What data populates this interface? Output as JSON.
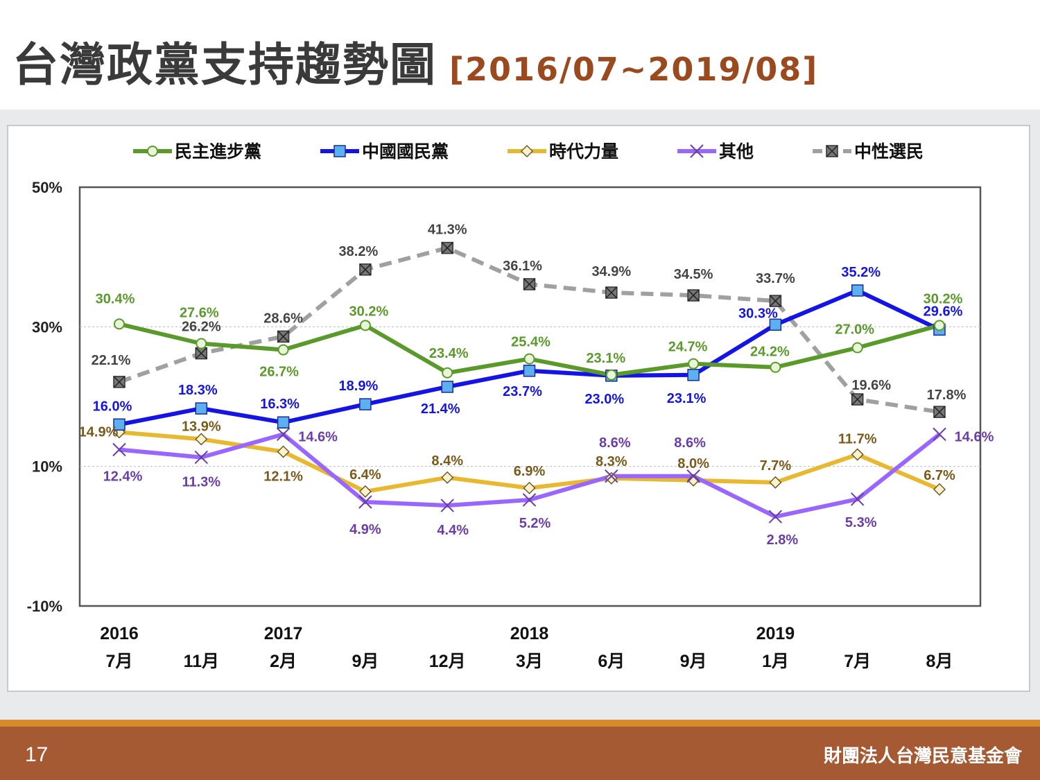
{
  "header": {
    "title": "台灣政黨支持趨勢圖",
    "subtitle": "[2016/07~2019/08]"
  },
  "footer": {
    "page_number": "17",
    "org_name": "財團法人台灣民意基金會"
  },
  "chart_data": {
    "type": "line",
    "yaxis_ticks": [
      "50%",
      "30%",
      "10%",
      "-10%"
    ],
    "ylim": [
      -10,
      50
    ],
    "grid": "horizontal dotted at 10% and 30%",
    "legend_position": "top",
    "x": [
      "2016 7月",
      "2016 11月",
      "2017 2月",
      "2017 9月",
      "2017 12月",
      "2018 3月",
      "2018 6月",
      "2018 9月",
      "2019 1月",
      "2019 7月",
      "2019 8月"
    ],
    "year_labels": [
      "2016",
      "",
      "2017",
      "",
      "",
      "2018",
      "",
      "",
      "2019",
      "",
      ""
    ],
    "month_labels": [
      "7月",
      "11月",
      "2月",
      "9月",
      "12月",
      "3月",
      "6月",
      "9月",
      "1月",
      "7月",
      "8月"
    ],
    "series": [
      {
        "name": "民主進步黨",
        "color": "#5a9a2a",
        "marker": "circle",
        "dashed": false,
        "values": [
          30.4,
          27.6,
          26.7,
          30.2,
          23.4,
          25.4,
          23.1,
          24.7,
          24.2,
          27.0,
          30.2
        ],
        "labels": [
          "30.4%",
          "27.6%",
          "26.7%",
          "30.2%",
          "23.4%",
          "25.4%",
          "23.1%",
          "24.7%",
          "24.2%",
          "27.0%",
          "30.2%"
        ]
      },
      {
        "name": "中國國民黨",
        "color": "#1414e6",
        "marker": "square",
        "dashed": false,
        "values": [
          16.0,
          18.3,
          16.3,
          18.9,
          21.4,
          23.7,
          23.0,
          23.1,
          30.3,
          35.2,
          29.6
        ],
        "labels": [
          "16.0%",
          "18.3%",
          "16.3%",
          "18.9%",
          "21.4%",
          "23.7%",
          "23.0%",
          "23.1%",
          "30.3%",
          "35.2%",
          "29.6%"
        ]
      },
      {
        "name": "時代力量",
        "color": "#e8b830",
        "marker": "diamond",
        "dashed": false,
        "values": [
          14.9,
          13.9,
          12.1,
          6.4,
          8.4,
          6.9,
          8.3,
          8.0,
          7.7,
          11.7,
          6.7
        ],
        "labels": [
          "14.9%",
          "13.9%",
          "12.1%",
          "6.4%",
          "8.4%",
          "6.9%",
          "8.3%",
          "8.0%",
          "7.7%",
          "11.7%",
          "6.7%"
        ]
      },
      {
        "name": "其他",
        "color": "#9966ff",
        "marker": "x",
        "dashed": false,
        "values": [
          12.4,
          11.3,
          14.6,
          4.9,
          4.4,
          5.2,
          8.6,
          8.6,
          2.8,
          5.3,
          14.6
        ],
        "labels": [
          "12.4%",
          "11.3%",
          "14.6%",
          "4.9%",
          "4.4%",
          "5.2%",
          "8.6%",
          "8.6%",
          "2.8%",
          "5.3%",
          "14.6%"
        ]
      },
      {
        "name": "中性選民",
        "color": "#a0a0a0",
        "marker": "boxx",
        "dashed": true,
        "values": [
          22.1,
          26.2,
          28.6,
          38.2,
          41.3,
          36.1,
          34.9,
          34.5,
          33.7,
          19.6,
          17.8
        ],
        "labels": [
          "22.1%",
          "26.2%",
          "28.6%",
          "38.2%",
          "41.3%",
          "36.1%",
          "34.9%",
          "34.5%",
          "33.7%",
          "19.6%",
          "17.8%"
        ]
      }
    ]
  }
}
